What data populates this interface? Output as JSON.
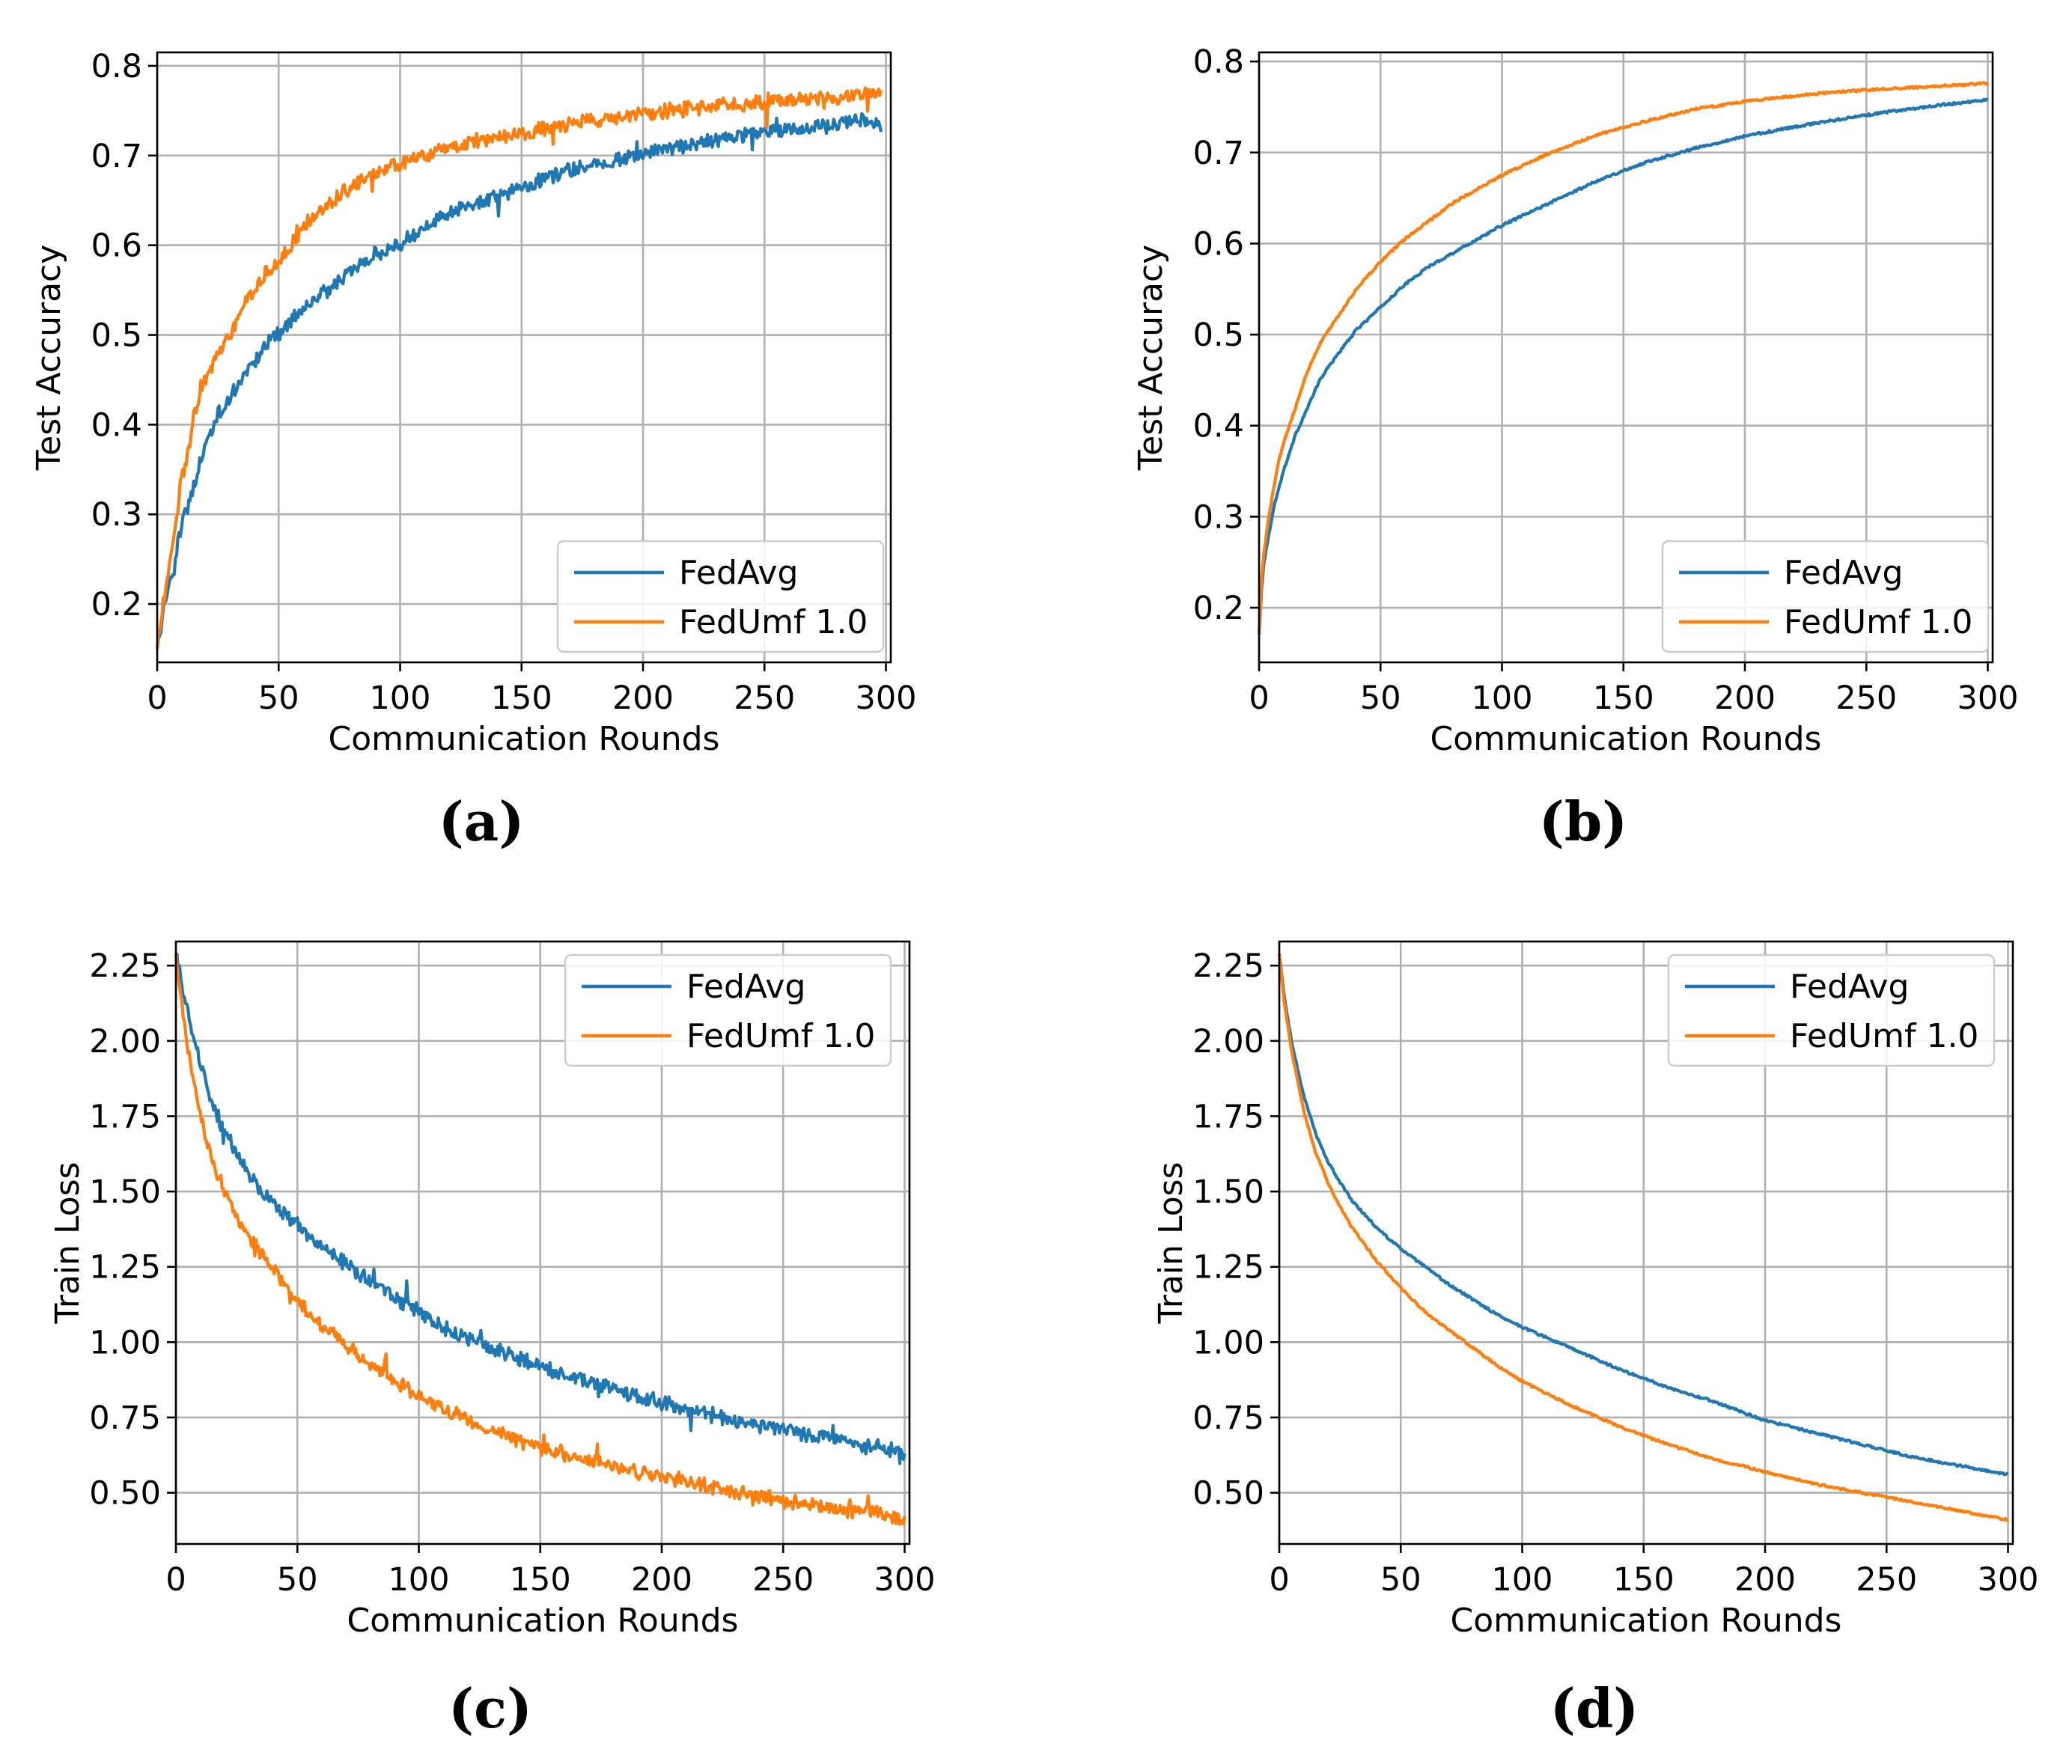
{
  "chart_data": [
    {
      "type": "line",
      "panel_label": "a",
      "xlabel": "Communication Rounds",
      "ylabel": "Test Accuracy",
      "xlim": [
        0,
        302
      ],
      "ylim": [
        0.135,
        0.815
      ],
      "xticks": [
        0,
        50,
        100,
        150,
        200,
        250,
        300
      ],
      "yticks": [
        0.2,
        0.3,
        0.4,
        0.5,
        0.6,
        0.7,
        0.8
      ],
      "ytick_labels": [
        "0.2",
        "0.3",
        "0.4",
        "0.5",
        "0.6",
        "0.7",
        "0.8"
      ],
      "grid": true,
      "legend_position": "lower right",
      "noisy": true,
      "series": [
        {
          "name": "FedAvg",
          "color": "#1f77b4",
          "x": [
            0,
            3,
            5,
            8,
            10,
            13,
            15,
            18,
            20,
            25,
            30,
            35,
            40,
            45,
            50,
            60,
            70,
            80,
            90,
            100,
            110,
            120,
            130,
            140,
            150,
            160,
            170,
            180,
            190,
            200,
            210,
            220,
            230,
            240,
            250,
            260,
            270,
            280,
            290,
            298
          ],
          "y": [
            0.15,
            0.2,
            0.22,
            0.26,
            0.29,
            0.31,
            0.33,
            0.36,
            0.38,
            0.41,
            0.43,
            0.45,
            0.47,
            0.49,
            0.5,
            0.53,
            0.55,
            0.57,
            0.59,
            0.6,
            0.62,
            0.635,
            0.645,
            0.655,
            0.665,
            0.675,
            0.683,
            0.69,
            0.697,
            0.703,
            0.708,
            0.713,
            0.718,
            0.722,
            0.726,
            0.729,
            0.732,
            0.735,
            0.738,
            0.735
          ]
        },
        {
          "name": "FedUmf 1.0",
          "color": "#ff7f0e",
          "x": [
            0,
            3,
            5,
            8,
            10,
            13,
            15,
            18,
            20,
            25,
            30,
            35,
            40,
            45,
            50,
            60,
            70,
            80,
            90,
            100,
            110,
            120,
            130,
            140,
            150,
            160,
            170,
            180,
            190,
            200,
            210,
            220,
            230,
            240,
            250,
            260,
            270,
            280,
            290,
            298
          ],
          "y": [
            0.15,
            0.21,
            0.25,
            0.3,
            0.34,
            0.37,
            0.41,
            0.44,
            0.45,
            0.48,
            0.5,
            0.53,
            0.55,
            0.57,
            0.58,
            0.62,
            0.645,
            0.665,
            0.68,
            0.69,
            0.7,
            0.71,
            0.715,
            0.72,
            0.725,
            0.73,
            0.735,
            0.74,
            0.743,
            0.746,
            0.749,
            0.752,
            0.755,
            0.757,
            0.759,
            0.761,
            0.763,
            0.765,
            0.768,
            0.77
          ]
        }
      ]
    },
    {
      "type": "line",
      "panel_label": "b",
      "xlabel": "Communication Rounds",
      "ylabel": "Test Accuracy",
      "xlim": [
        0,
        302
      ],
      "ylim": [
        0.14,
        0.81
      ],
      "xticks": [
        0,
        50,
        100,
        150,
        200,
        250,
        300
      ],
      "yticks": [
        0.2,
        0.3,
        0.4,
        0.5,
        0.6,
        0.7,
        0.8
      ],
      "ytick_labels": [
        "0.2",
        "0.3",
        "0.4",
        "0.5",
        "0.6",
        "0.7",
        "0.8"
      ],
      "grid": true,
      "legend_position": "lower right",
      "noisy": false,
      "series": [
        {
          "name": "FedAvg",
          "color": "#1f77b4",
          "x": [
            0,
            1,
            2,
            4,
            6,
            8,
            10,
            15,
            20,
            25,
            30,
            40,
            50,
            60,
            70,
            80,
            90,
            100,
            120,
            140,
            160,
            180,
            200,
            220,
            240,
            260,
            280,
            300
          ],
          "y": [
            0.17,
            0.22,
            0.25,
            0.28,
            0.31,
            0.33,
            0.35,
            0.39,
            0.42,
            0.45,
            0.47,
            0.505,
            0.53,
            0.555,
            0.575,
            0.59,
            0.605,
            0.62,
            0.645,
            0.67,
            0.69,
            0.705,
            0.718,
            0.728,
            0.737,
            0.745,
            0.752,
            0.758
          ]
        },
        {
          "name": "FedUmf 1.0",
          "color": "#ff7f0e",
          "x": [
            0,
            1,
            2,
            4,
            6,
            8,
            10,
            15,
            20,
            25,
            30,
            40,
            50,
            60,
            70,
            80,
            90,
            100,
            120,
            140,
            160,
            180,
            200,
            220,
            240,
            260,
            280,
            300
          ],
          "y": [
            0.17,
            0.23,
            0.26,
            0.3,
            0.33,
            0.36,
            0.38,
            0.42,
            0.46,
            0.49,
            0.51,
            0.55,
            0.58,
            0.605,
            0.625,
            0.645,
            0.66,
            0.675,
            0.7,
            0.72,
            0.735,
            0.748,
            0.756,
            0.762,
            0.767,
            0.77,
            0.773,
            0.776
          ]
        }
      ]
    },
    {
      "type": "line",
      "panel_label": "c",
      "xlabel": "Communication Rounds",
      "ylabel": "Train Loss",
      "xlim": [
        0,
        302
      ],
      "ylim": [
        0.33,
        2.33
      ],
      "xticks": [
        0,
        50,
        100,
        150,
        200,
        250,
        300
      ],
      "yticks": [
        0.5,
        0.75,
        1.0,
        1.25,
        1.5,
        1.75,
        2.0,
        2.25
      ],
      "ytick_labels": [
        "0.50",
        "0.75",
        "1.00",
        "1.25",
        "1.50",
        "1.75",
        "2.00",
        "2.25"
      ],
      "grid": true,
      "legend_position": "upper right",
      "noisy": true,
      "series": [
        {
          "name": "FedAvg",
          "color": "#1f77b4",
          "x": [
            0,
            2,
            5,
            8,
            10,
            15,
            20,
            25,
            30,
            35,
            40,
            50,
            60,
            70,
            80,
            90,
            100,
            110,
            120,
            130,
            140,
            150,
            160,
            170,
            180,
            190,
            200,
            210,
            220,
            230,
            240,
            250,
            260,
            270,
            280,
            290,
            300
          ],
          "y": [
            2.29,
            2.2,
            2.09,
            2.0,
            1.93,
            1.8,
            1.7,
            1.63,
            1.56,
            1.5,
            1.46,
            1.39,
            1.32,
            1.26,
            1.2,
            1.15,
            1.1,
            1.05,
            1.01,
            0.98,
            0.95,
            0.92,
            0.89,
            0.87,
            0.85,
            0.82,
            0.8,
            0.78,
            0.76,
            0.74,
            0.72,
            0.71,
            0.69,
            0.68,
            0.66,
            0.65,
            0.63
          ]
        },
        {
          "name": "FedUmf 1.0",
          "color": "#ff7f0e",
          "x": [
            0,
            2,
            5,
            8,
            10,
            15,
            20,
            25,
            30,
            35,
            40,
            50,
            60,
            70,
            80,
            90,
            100,
            110,
            120,
            130,
            140,
            150,
            160,
            170,
            180,
            190,
            200,
            210,
            220,
            230,
            240,
            250,
            260,
            270,
            280,
            290,
            300
          ],
          "y": [
            2.29,
            2.15,
            1.98,
            1.85,
            1.76,
            1.6,
            1.5,
            1.42,
            1.35,
            1.29,
            1.24,
            1.14,
            1.06,
            0.99,
            0.92,
            0.87,
            0.82,
            0.78,
            0.74,
            0.71,
            0.68,
            0.65,
            0.63,
            0.61,
            0.59,
            0.57,
            0.55,
            0.535,
            0.52,
            0.505,
            0.49,
            0.475,
            0.46,
            0.45,
            0.44,
            0.43,
            0.41
          ]
        }
      ]
    },
    {
      "type": "line",
      "panel_label": "d",
      "xlabel": "Communication Rounds",
      "ylabel": "Train Loss",
      "xlim": [
        0,
        302
      ],
      "ylim": [
        0.33,
        2.33
      ],
      "xticks": [
        0,
        50,
        100,
        150,
        200,
        250,
        300
      ],
      "yticks": [
        0.5,
        0.75,
        1.0,
        1.25,
        1.5,
        1.75,
        2.0,
        2.25
      ],
      "ytick_labels": [
        "0.50",
        "0.75",
        "1.00",
        "1.25",
        "1.50",
        "1.75",
        "2.00",
        "2.25"
      ],
      "grid": true,
      "legend_position": "upper right",
      "noisy": false,
      "series": [
        {
          "name": "FedAvg",
          "color": "#1f77b4",
          "x": [
            0,
            2,
            5,
            8,
            10,
            15,
            20,
            25,
            30,
            40,
            50,
            60,
            70,
            80,
            90,
            100,
            120,
            140,
            160,
            180,
            200,
            220,
            240,
            260,
            280,
            300
          ],
          "y": [
            2.29,
            2.15,
            2.0,
            1.89,
            1.82,
            1.69,
            1.6,
            1.53,
            1.47,
            1.38,
            1.31,
            1.25,
            1.19,
            1.14,
            1.09,
            1.05,
            0.98,
            0.91,
            0.85,
            0.8,
            0.74,
            0.7,
            0.66,
            0.62,
            0.59,
            0.56
          ]
        },
        {
          "name": "FedUmf 1.0",
          "color": "#ff7f0e",
          "x": [
            0,
            2,
            5,
            8,
            10,
            15,
            20,
            25,
            30,
            40,
            50,
            60,
            70,
            80,
            90,
            100,
            120,
            140,
            160,
            180,
            200,
            220,
            240,
            260,
            280,
            300
          ],
          "y": [
            2.29,
            2.13,
            1.97,
            1.85,
            1.77,
            1.63,
            1.53,
            1.45,
            1.38,
            1.27,
            1.18,
            1.1,
            1.04,
            0.98,
            0.92,
            0.87,
            0.79,
            0.72,
            0.66,
            0.61,
            0.57,
            0.53,
            0.5,
            0.47,
            0.44,
            0.41
          ]
        }
      ]
    }
  ],
  "captions": {
    "a": "(a)",
    "b": "(b)",
    "c": "(c)",
    "d": "(d)"
  }
}
